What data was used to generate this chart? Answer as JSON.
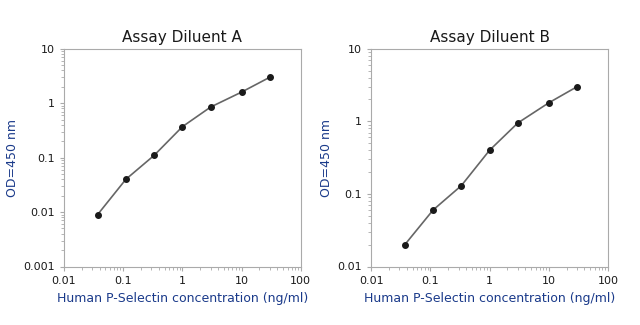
{
  "panel_A": {
    "title": "Assay Diluent A",
    "x": [
      0.037,
      0.111,
      0.333,
      1.0,
      3.0,
      10.0,
      30.0
    ],
    "y": [
      0.009,
      0.04,
      0.11,
      0.37,
      0.85,
      1.6,
      3.0
    ],
    "xlim": [
      0.01,
      100
    ],
    "ylim": [
      0.001,
      10
    ],
    "xlabel": "Human P-Selectin concentration (ng/ml)",
    "ylabel": "OD=450 nm",
    "yticks": [
      0.001,
      0.01,
      0.1,
      1,
      10
    ],
    "ytick_labels": [
      "0.001",
      "0.01",
      "0.1",
      "1",
      "10"
    ]
  },
  "panel_B": {
    "title": "Assay Diluent B",
    "x": [
      0.037,
      0.111,
      0.333,
      1.0,
      3.0,
      10.0,
      30.0
    ],
    "y": [
      0.02,
      0.06,
      0.13,
      0.4,
      0.95,
      1.8,
      3.0
    ],
    "xlim": [
      0.01,
      100
    ],
    "ylim": [
      0.01,
      10
    ],
    "xlabel": "Human P-Selectin concentration (ng/ml)",
    "ylabel": "OD=450 nm",
    "yticks": [
      0.01,
      0.1,
      1,
      10
    ],
    "ytick_labels": [
      "0.01",
      "0.1",
      "1",
      "10"
    ]
  },
  "xticks": [
    0.01,
    0.1,
    1,
    10,
    100
  ],
  "xtick_labels": [
    "0.01",
    "0.1",
    "1",
    "10",
    "100"
  ],
  "line_color": "#666666",
  "marker_color": "#1a1a1a",
  "title_color": "#1a1a1a",
  "label_color": "#1a3a8a",
  "tick_label_color": "#1a1a1a",
  "spine_color": "#aaaaaa",
  "background_color": "#ffffff",
  "plot_bg_color": "#ffffff",
  "marker_size": 4,
  "line_width": 1.2,
  "title_fontsize": 11,
  "label_fontsize": 9,
  "tick_fontsize": 8
}
